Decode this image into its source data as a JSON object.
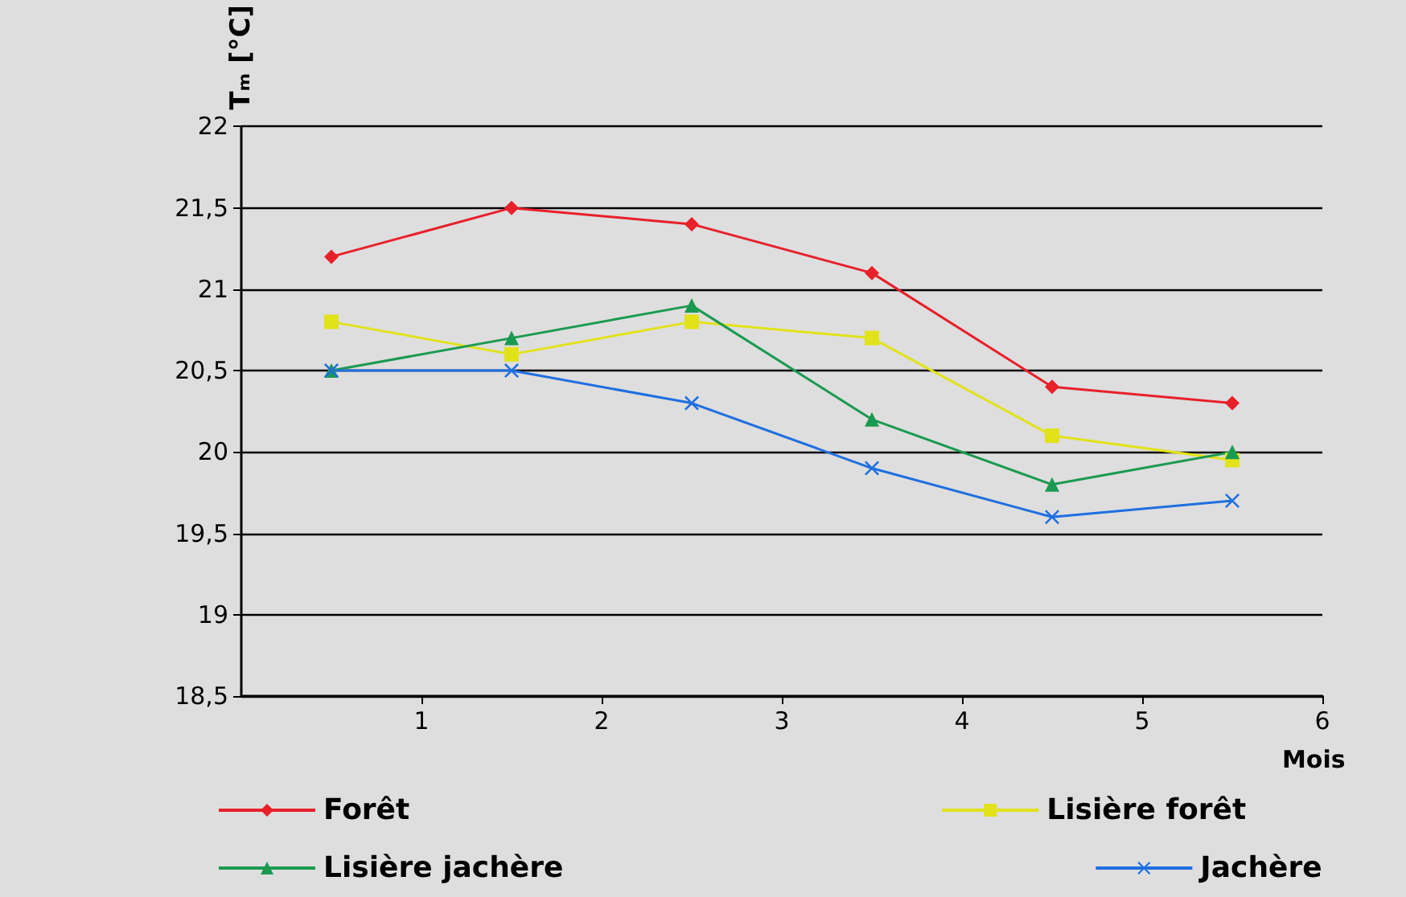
{
  "chart_data": {
    "type": "line",
    "xlabel": "Mois",
    "ylabel": "Tₘ [°C]",
    "x": [
      0.5,
      1.5,
      2.5,
      3.5,
      4.5,
      5.5
    ],
    "series": [
      {
        "name": "Forêt",
        "color": "#e8202a",
        "marker": "diamond",
        "values": [
          21.2,
          21.5,
          21.4,
          21.1,
          20.4,
          20.3
        ]
      },
      {
        "name": "Lisière forêt",
        "color": "#e2e21a",
        "marker": "square",
        "values": [
          20.8,
          20.6,
          20.8,
          20.7,
          20.1,
          19.95
        ]
      },
      {
        "name": "Lisière jachère",
        "color": "#1a9a50",
        "marker": "triangle",
        "values": [
          20.5,
          20.7,
          20.9,
          20.2,
          19.8,
          20.0
        ]
      },
      {
        "name": "Jachère",
        "color": "#1f6fe0",
        "marker": "cross",
        "values": [
          20.5,
          20.5,
          20.3,
          19.9,
          19.6,
          19.7
        ]
      }
    ],
    "xlim": [
      0,
      6
    ],
    "xticks": [
      1,
      2,
      3,
      4,
      5,
      6
    ],
    "ylim": [
      18.5,
      22
    ],
    "yticks": [
      {
        "value": 18.5,
        "label": "18,5"
      },
      19,
      {
        "value": 19.5,
        "label": "19,5"
      },
      20,
      {
        "value": 20.5,
        "label": "20,5"
      },
      21,
      {
        "value": 21.5,
        "label": "21,5"
      },
      22
    ],
    "grid": "y",
    "legend": "bottom",
    "line_style": "solid"
  }
}
